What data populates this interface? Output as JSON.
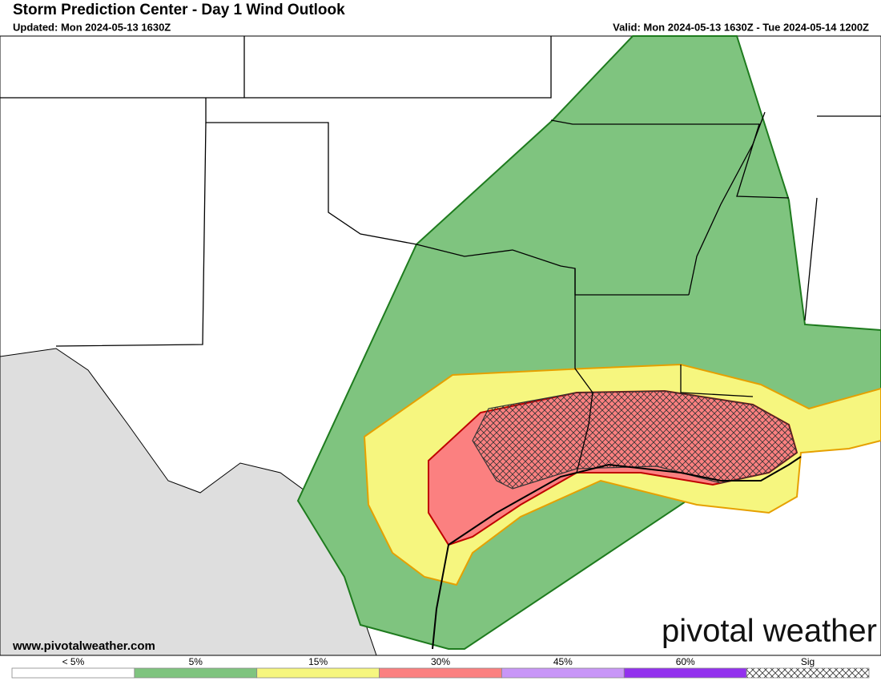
{
  "header": {
    "title": "Storm Prediction Center - Day 1 Wind Outlook",
    "updated": "Updated: Mon 2024-05-13 1630Z",
    "valid": "Valid: Mon 2024-05-13 1630Z - Tue 2024-05-14 1200Z"
  },
  "footer": {
    "website": "www.pivotalweather.com",
    "logo": "pivotal weather"
  },
  "legend": [
    {
      "label": "< 5%",
      "color": "#ffffff"
    },
    {
      "label": "5%",
      "color": "#7fc47f"
    },
    {
      "label": "15%",
      "color": "#f6f67f"
    },
    {
      "label": "30%",
      "color": "#fb8080"
    },
    {
      "label": "45%",
      "color": "#c896f7"
    },
    {
      "label": "60%",
      "color": "#9331ee"
    },
    {
      "label": "Sig"
    }
  ]
}
